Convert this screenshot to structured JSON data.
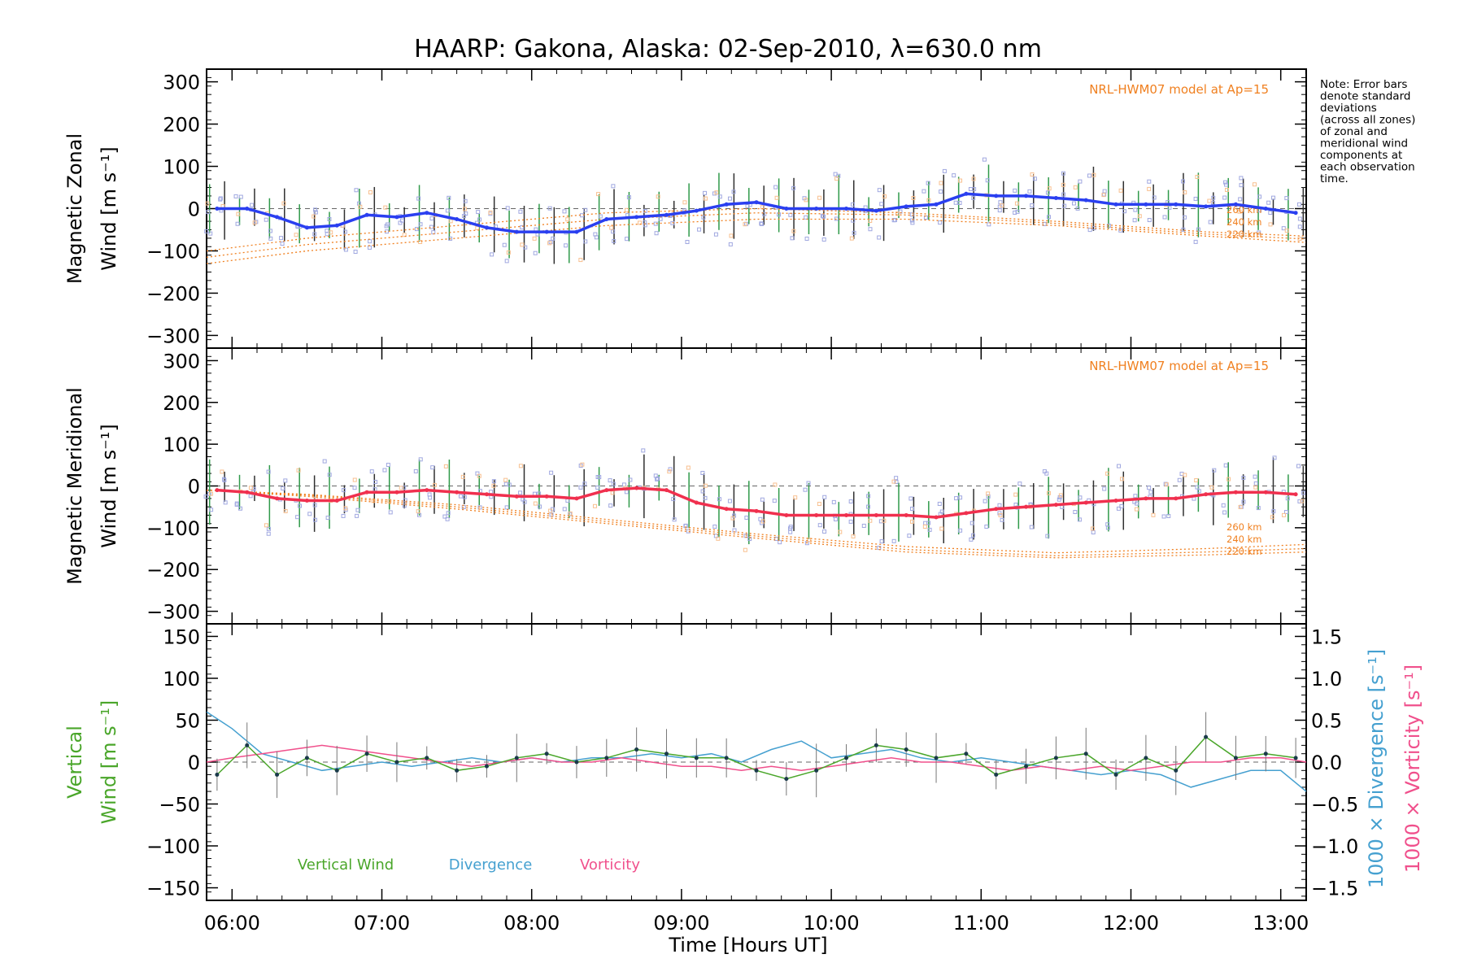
{
  "title": "HAARP: Gakona,  Alaska: 02-Sep-2010, λ=630.0 nm",
  "note_lines": [
    "Note: Error bars",
    "denote standard",
    "deviations",
    "(across all zones)",
    "of zonal and",
    "meridional wind",
    "components at",
    "each observation",
    "time."
  ],
  "colors": {
    "zonal": "#2a3ff0",
    "meridional": "#f0304e",
    "model": "#f08020",
    "vertical": "#4aa62a",
    "divergence": "#45a0d0",
    "vorticity": "#f0508c",
    "errorbar_dark": "#303030",
    "errorbar_green": "#2f9a4a",
    "zone_box": "#a0a8e0",
    "zone_box_orange": "#f8c090"
  },
  "chart_data": [
    {
      "type": "line",
      "panel": "zonal",
      "title": "",
      "ylabel_lines": [
        "Magnetic Zonal",
        "Wind [m s⁻¹]"
      ],
      "ylim": [
        -330,
        330
      ],
      "yticks": [
        300,
        200,
        100,
        0,
        -100,
        -200,
        -300
      ],
      "xlim": [
        5.83,
        13.17
      ],
      "model_label": "NRL-HWM07 model at Ap=15",
      "series": [
        {
          "name": "zonal",
          "x": [
            5.9,
            6.1,
            6.3,
            6.5,
            6.7,
            6.9,
            7.1,
            7.3,
            7.5,
            7.7,
            7.9,
            8.1,
            8.3,
            8.5,
            8.7,
            8.9,
            9.1,
            9.3,
            9.5,
            9.7,
            9.9,
            10.1,
            10.3,
            10.5,
            10.7,
            10.9,
            11.1,
            11.3,
            11.5,
            11.7,
            11.9,
            12.1,
            12.3,
            12.5,
            12.7,
            12.9,
            13.1
          ],
          "y": [
            0,
            0,
            -20,
            -45,
            -40,
            -15,
            -20,
            -10,
            -25,
            -45,
            -55,
            -55,
            -55,
            -25,
            -20,
            -15,
            -5,
            10,
            15,
            0,
            0,
            0,
            -5,
            5,
            10,
            35,
            30,
            30,
            25,
            20,
            10,
            10,
            10,
            5,
            10,
            0,
            -10
          ]
        }
      ],
      "model_series": [
        {
          "name": "260 km",
          "x": [
            5.83,
            6.5,
            7.5,
            8.5,
            9.5,
            10.5,
            11.5,
            12.5,
            13.17
          ],
          "y": [
            -100,
            -70,
            -40,
            -10,
            0,
            -10,
            -30,
            -55,
            -65
          ]
        },
        {
          "name": "240 km",
          "x": [
            5.83,
            6.5,
            7.5,
            8.5,
            9.5,
            10.5,
            11.5,
            12.5,
            13.17
          ],
          "y": [
            -115,
            -85,
            -55,
            -25,
            -10,
            -15,
            -35,
            -60,
            -72
          ]
        },
        {
          "name": "220 km",
          "x": [
            5.83,
            6.5,
            7.5,
            8.5,
            9.5,
            10.5,
            11.5,
            12.5,
            13.17
          ],
          "y": [
            -130,
            -100,
            -70,
            -40,
            -25,
            -25,
            -40,
            -65,
            -80
          ]
        }
      ]
    },
    {
      "type": "line",
      "panel": "meridional",
      "title": "",
      "ylabel_lines": [
        "Magnetic Meridional",
        "Wind [m s⁻¹]"
      ],
      "ylim": [
        -330,
        330
      ],
      "yticks": [
        300,
        200,
        100,
        0,
        -100,
        -200,
        -300
      ],
      "xlim": [
        5.83,
        13.17
      ],
      "model_label": "NRL-HWM07 model at Ap=15",
      "series": [
        {
          "name": "meridional",
          "x": [
            5.9,
            6.1,
            6.3,
            6.5,
            6.7,
            6.9,
            7.1,
            7.3,
            7.5,
            7.7,
            7.9,
            8.1,
            8.3,
            8.5,
            8.7,
            8.9,
            9.1,
            9.3,
            9.5,
            9.7,
            9.9,
            10.1,
            10.3,
            10.5,
            10.7,
            10.9,
            11.1,
            11.3,
            11.5,
            11.7,
            11.9,
            12.1,
            12.3,
            12.5,
            12.7,
            12.9,
            13.1
          ],
          "y": [
            -10,
            -15,
            -30,
            -35,
            -35,
            -15,
            -15,
            -10,
            -15,
            -20,
            -25,
            -25,
            -30,
            -10,
            -5,
            -10,
            -40,
            -55,
            -60,
            -70,
            -70,
            -70,
            -70,
            -70,
            -75,
            -65,
            -55,
            -50,
            -45,
            -40,
            -35,
            -30,
            -30,
            -20,
            -15,
            -15,
            -20
          ]
        }
      ],
      "model_series": [
        {
          "name": "260 km",
          "x": [
            5.83,
            6.5,
            7.5,
            8.5,
            9.5,
            10.5,
            11.5,
            12.5,
            13.17
          ],
          "y": [
            -10,
            -20,
            -45,
            -80,
            -115,
            -145,
            -160,
            -150,
            -140
          ]
        },
        {
          "name": "240 km",
          "x": [
            5.83,
            6.5,
            7.5,
            8.5,
            9.5,
            10.5,
            11.5,
            12.5,
            13.17
          ],
          "y": [
            -10,
            -22,
            -50,
            -85,
            -120,
            -152,
            -167,
            -158,
            -150
          ]
        },
        {
          "name": "220 km",
          "x": [
            5.83,
            6.5,
            7.5,
            8.5,
            9.5,
            10.5,
            11.5,
            12.5,
            13.17
          ],
          "y": [
            -10,
            -25,
            -55,
            -90,
            -125,
            -158,
            -172,
            -165,
            -158
          ]
        }
      ]
    },
    {
      "type": "line",
      "panel": "vertical",
      "title": "",
      "xlabel": "Time [Hours UT]",
      "ylabel_lines": [
        "Vertical",
        "Wind [m s⁻¹]"
      ],
      "y2label": "1000 × Divergence [s⁻¹]",
      "y3label": "1000 × Vorticity [s⁻¹]",
      "ylim": [
        -165,
        165
      ],
      "yticks": [
        150,
        100,
        50,
        0,
        -50,
        -100,
        -150
      ],
      "y2lim": [
        -1.65,
        1.65
      ],
      "y2ticks": [
        1.5,
        1.0,
        0.5,
        0.0,
        -0.5,
        -1.0,
        -1.5
      ],
      "xlim": [
        5.83,
        13.17
      ],
      "xticks": [
        6,
        7,
        8,
        9,
        10,
        11,
        12,
        13
      ],
      "xticklabels": [
        "06:00",
        "07:00",
        "08:00",
        "09:00",
        "10:00",
        "11:00",
        "12:00",
        "13:00"
      ],
      "legend": [
        "Vertical Wind",
        "Divergence",
        "Vorticity"
      ],
      "legend_placement": "bottom-left",
      "series": [
        {
          "name": "Vertical Wind",
          "x": [
            5.9,
            6.1,
            6.3,
            6.5,
            6.7,
            6.9,
            7.1,
            7.3,
            7.5,
            7.7,
            7.9,
            8.1,
            8.3,
            8.5,
            8.7,
            8.9,
            9.1,
            9.3,
            9.5,
            9.7,
            9.9,
            10.1,
            10.3,
            10.5,
            10.7,
            10.9,
            11.1,
            11.3,
            11.5,
            11.7,
            11.9,
            12.1,
            12.3,
            12.5,
            12.7,
            12.9,
            13.1
          ],
          "y": [
            -15,
            20,
            -15,
            5,
            -10,
            10,
            0,
            5,
            -10,
            -5,
            5,
            10,
            0,
            5,
            15,
            10,
            5,
            5,
            -10,
            -20,
            -10,
            5,
            20,
            15,
            5,
            10,
            -15,
            -5,
            5,
            10,
            -15,
            5,
            -10,
            30,
            5,
            10,
            5
          ]
        },
        {
          "name": "Divergence",
          "x": [
            5.83,
            6.0,
            6.2,
            6.4,
            6.6,
            6.8,
            7.0,
            7.2,
            7.4,
            7.6,
            7.8,
            8.0,
            8.2,
            8.4,
            8.6,
            8.8,
            9.0,
            9.2,
            9.4,
            9.6,
            9.8,
            10.0,
            10.2,
            10.4,
            10.6,
            10.8,
            11.0,
            11.2,
            11.4,
            11.6,
            11.8,
            12.0,
            12.2,
            12.4,
            12.6,
            12.8,
            13.0,
            13.17
          ],
          "y": [
            0.6,
            0.4,
            0.1,
            0.0,
            -0.1,
            -0.05,
            0.0,
            -0.05,
            0.0,
            0.05,
            0.0,
            0.05,
            0.0,
            0.05,
            0.05,
            0.1,
            0.05,
            0.1,
            0.0,
            0.15,
            0.25,
            0.05,
            0.1,
            0.15,
            0.05,
            0.0,
            0.05,
            0.0,
            -0.05,
            -0.1,
            -0.15,
            -0.1,
            -0.15,
            -0.3,
            -0.2,
            -0.1,
            -0.1,
            -0.35
          ]
        },
        {
          "name": "Vorticity",
          "x": [
            5.83,
            6.0,
            6.2,
            6.4,
            6.6,
            6.8,
            7.0,
            7.2,
            7.4,
            7.6,
            7.8,
            8.0,
            8.2,
            8.4,
            8.6,
            8.8,
            9.0,
            9.2,
            9.4,
            9.6,
            9.8,
            10.0,
            10.2,
            10.4,
            10.6,
            10.8,
            11.0,
            11.2,
            11.4,
            11.6,
            11.8,
            12.0,
            12.2,
            12.4,
            12.6,
            12.8,
            13.0,
            13.17
          ],
          "y": [
            0.0,
            0.05,
            0.1,
            0.15,
            0.2,
            0.15,
            0.1,
            0.05,
            0.0,
            -0.05,
            0.0,
            0.05,
            0.0,
            0.0,
            0.05,
            0.0,
            -0.05,
            -0.05,
            -0.1,
            -0.05,
            -0.1,
            -0.05,
            0.0,
            0.05,
            0.0,
            0.0,
            -0.05,
            -0.1,
            -0.05,
            -0.1,
            -0.05,
            -0.1,
            -0.05,
            0.0,
            0.0,
            0.05,
            0.05,
            0.0
          ]
        }
      ]
    }
  ]
}
